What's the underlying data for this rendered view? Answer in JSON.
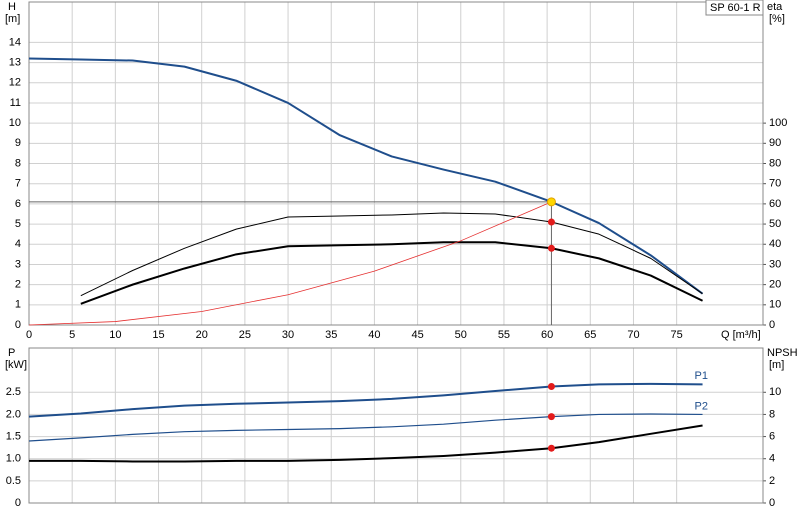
{
  "chart_data": [
    {
      "type": "line",
      "title": "SP 60-1 R",
      "ylabel": "H",
      "yunit": "[m]",
      "y2label": "eta",
      "y2unit": "[%]",
      "xlabel": "Q [m³/h]",
      "xlim": [
        0,
        85
      ],
      "xticks": [
        0,
        5,
        10,
        15,
        20,
        25,
        30,
        35,
        40,
        45,
        50,
        55,
        60,
        65,
        70,
        75
      ],
      "show_xtick_labels": true,
      "ylim": [
        0,
        16
      ],
      "yticks": [
        0,
        1,
        2,
        3,
        4,
        5,
        6,
        7,
        8,
        9,
        10,
        11,
        12,
        13,
        14
      ],
      "y2lim": [
        0,
        160
      ],
      "y2ticks": [
        0,
        10,
        20,
        30,
        40,
        50,
        60,
        70,
        80,
        90,
        100
      ],
      "grid": true,
      "duty_point": {
        "x": 60.5,
        "y": 6.1,
        "color": "#ffd700"
      },
      "series": [
        {
          "color": "#1f4e8c",
          "linewidth": 2,
          "x": [
            0,
            6,
            12,
            18,
            24,
            30,
            36,
            42,
            48,
            54,
            60.5,
            66,
            72,
            78
          ],
          "values": [
            13.2,
            13.15,
            13.1,
            12.8,
            12.1,
            11.0,
            9.4,
            8.35,
            7.7,
            7.1,
            6.1,
            5.05,
            3.45,
            1.55
          ]
        },
        {
          "color": "#000000",
          "linewidth": 1,
          "axis": "y2",
          "x": [
            6,
            12,
            18,
            24,
            30,
            36,
            42,
            48,
            54,
            60.5,
            66,
            72,
            78
          ],
          "values": [
            14.5,
            27,
            38,
            47.5,
            53.5,
            54,
            54.5,
            55.5,
            55,
            51,
            45,
            33,
            15.5
          ]
        },
        {
          "color": "#000000",
          "linewidth": 2,
          "axis": "y2",
          "x": [
            6,
            12,
            18,
            24,
            30,
            36,
            42,
            48,
            54,
            60.5,
            66,
            72,
            78
          ],
          "values": [
            10.5,
            20,
            28,
            35,
            39,
            39.5,
            40,
            41,
            41,
            38,
            33,
            24.5,
            12
          ]
        },
        {
          "color": "#e53030",
          "linewidth": 0.8,
          "x": [
            0,
            10,
            20,
            30,
            40,
            50,
            60.5
          ],
          "values": [
            0,
            0.17,
            0.67,
            1.5,
            2.67,
            4.17,
            6.1
          ]
        }
      ]
    },
    {
      "type": "line",
      "ylabel": "P",
      "yunit": "[kW]",
      "y2label": "NPSH",
      "y2unit": "[m]",
      "xlim": [
        0,
        85
      ],
      "xticks": [
        0,
        5,
        10,
        15,
        20,
        25,
        30,
        35,
        40,
        45,
        50,
        55,
        60,
        65,
        70,
        75
      ],
      "show_xtick_labels": false,
      "ylim": [
        0,
        3.5
      ],
      "yticks": [
        0,
        0.5,
        {
          "value": 1,
          "label": "1.0"
        },
        1.5,
        {
          "value": 2,
          "label": "2.0"
        },
        2.5
      ],
      "y2lim": [
        0,
        14
      ],
      "y2ticks": [
        0,
        2,
        4,
        6,
        8,
        10
      ],
      "grid": true,
      "duty_point": {
        "x": 60.5
      },
      "series": [
        {
          "name": "P1",
          "color": "#1f4e8c",
          "linewidth": 2,
          "x": [
            0,
            6,
            12,
            18,
            24,
            30,
            36,
            42,
            48,
            54,
            60.5,
            66,
            72,
            78
          ],
          "values": [
            1.95,
            2.02,
            2.12,
            2.2,
            2.24,
            2.27,
            2.3,
            2.35,
            2.43,
            2.53,
            2.63,
            2.68,
            2.69,
            2.68
          ]
        },
        {
          "name": "P2",
          "color": "#1f4e8c",
          "linewidth": 1.2,
          "x": [
            0,
            6,
            12,
            18,
            24,
            30,
            36,
            42,
            48,
            54,
            60.5,
            66,
            72,
            78
          ],
          "values": [
            1.4,
            1.47,
            1.55,
            1.61,
            1.64,
            1.66,
            1.68,
            1.72,
            1.78,
            1.87,
            1.95,
            2.0,
            2.01,
            2.0
          ]
        },
        {
          "color": "#000000",
          "linewidth": 2,
          "axis": "y2",
          "x": [
            0,
            6,
            12,
            18,
            24,
            30,
            36,
            42,
            48,
            54,
            60.5,
            66,
            72,
            78
          ],
          "values": [
            3.8,
            3.8,
            3.75,
            3.75,
            3.8,
            3.8,
            3.9,
            4.05,
            4.25,
            4.55,
            4.95,
            5.5,
            6.25,
            7.0
          ]
        }
      ]
    }
  ]
}
